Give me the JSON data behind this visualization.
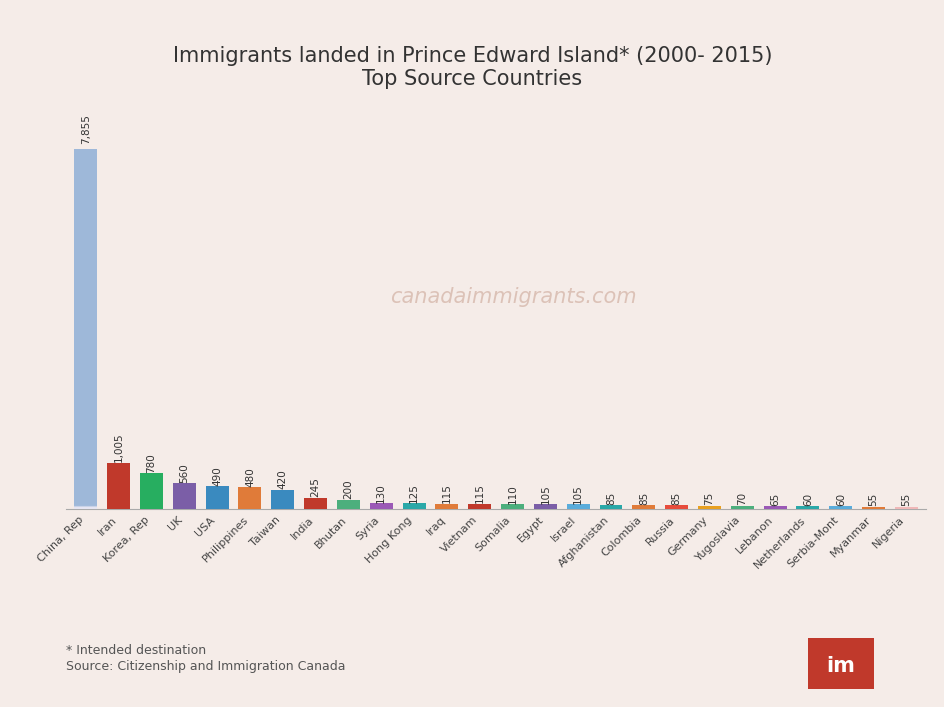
{
  "title_line1": "Immigrants landed in Prince Edward Island* (2000- 2015)",
  "title_line2": "Top Source Countries",
  "background_color": "#f5ece8",
  "watermark": "canadaimmigrants.com",
  "footnote1": "* Intended destination",
  "footnote2": "Source: Citizenship and Immigration Canada",
  "categories": [
    "China, Rep",
    "Iran",
    "Korea, Rep",
    "UK",
    "USA",
    "Philippines",
    "Taiwan",
    "India",
    "Bhutan",
    "Syria",
    "Hong Kong",
    "Iraq",
    "Vietnam",
    "Somalia",
    "Egypt",
    "Israel",
    "Afghanistan",
    "Colombia",
    "Russia",
    "Germany",
    "Yugoslavia",
    "Lebanon",
    "Netherlands",
    "Serbia-Mont",
    "Myanmar",
    "Nigeria"
  ],
  "values": [
    7855,
    1005,
    780,
    560,
    490,
    480,
    420,
    245,
    200,
    130,
    125,
    115,
    115,
    110,
    105,
    105,
    85,
    85,
    85,
    75,
    70,
    65,
    60,
    60,
    55,
    55
  ],
  "colors": [
    "#6b8cba",
    "#c0392b",
    "#27ae60",
    "#7b5ea7",
    "#3a8abf",
    "#e07b39",
    "#3a8abf",
    "#c0392b",
    "#4caf7d",
    "#9b59b6",
    "#2aa8a8",
    "#e07b39",
    "#c0392b",
    "#4caf7d",
    "#7b5ea7",
    "#5aacdb",
    "#2aa8a8",
    "#e07b39",
    "#e74c3c",
    "#e8a020",
    "#4caf7d",
    "#9b59b6",
    "#2aa8a8",
    "#5aacdb",
    "#e07b39",
    "#f0b8b8"
  ],
  "value_fontsize": 7.5,
  "label_fontsize": 8,
  "title_fontsize": 15
}
